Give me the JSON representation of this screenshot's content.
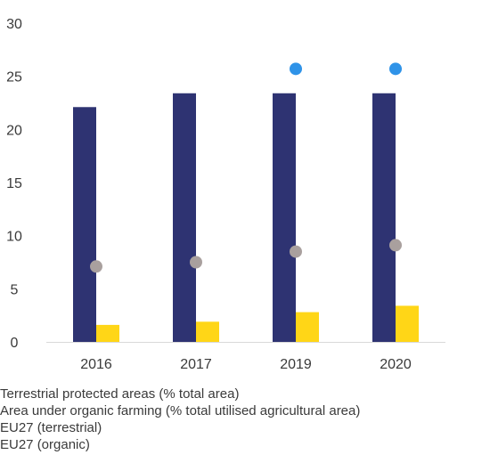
{
  "chart_data": {
    "type": "bar",
    "categories": [
      "2016",
      "2017",
      "2019",
      "2020"
    ],
    "ylim": [
      0,
      30
    ],
    "yticks": [
      0,
      5,
      10,
      15,
      20,
      25,
      30
    ],
    "grid": false,
    "legend_position": "bottom",
    "bar_series": [
      {
        "name": "Terrestrial protected areas (% total area)",
        "color": "#2e3372",
        "values": [
          22.1,
          23.4,
          23.4,
          23.4
        ]
      },
      {
        "name": "Area under organic farming (% total utilised agricultural area)",
        "color": "#ffd617",
        "values": [
          1.6,
          1.9,
          2.8,
          3.4
        ]
      }
    ],
    "point_series": [
      {
        "name": "EU27 (terrestrial)",
        "color": "#2f93e8",
        "values": [
          null,
          null,
          25.7,
          25.7
        ]
      },
      {
        "name": "EU27 (organic)",
        "color": "#a9a09e",
        "values": [
          7.1,
          7.5,
          8.5,
          9.1
        ]
      }
    ]
  }
}
